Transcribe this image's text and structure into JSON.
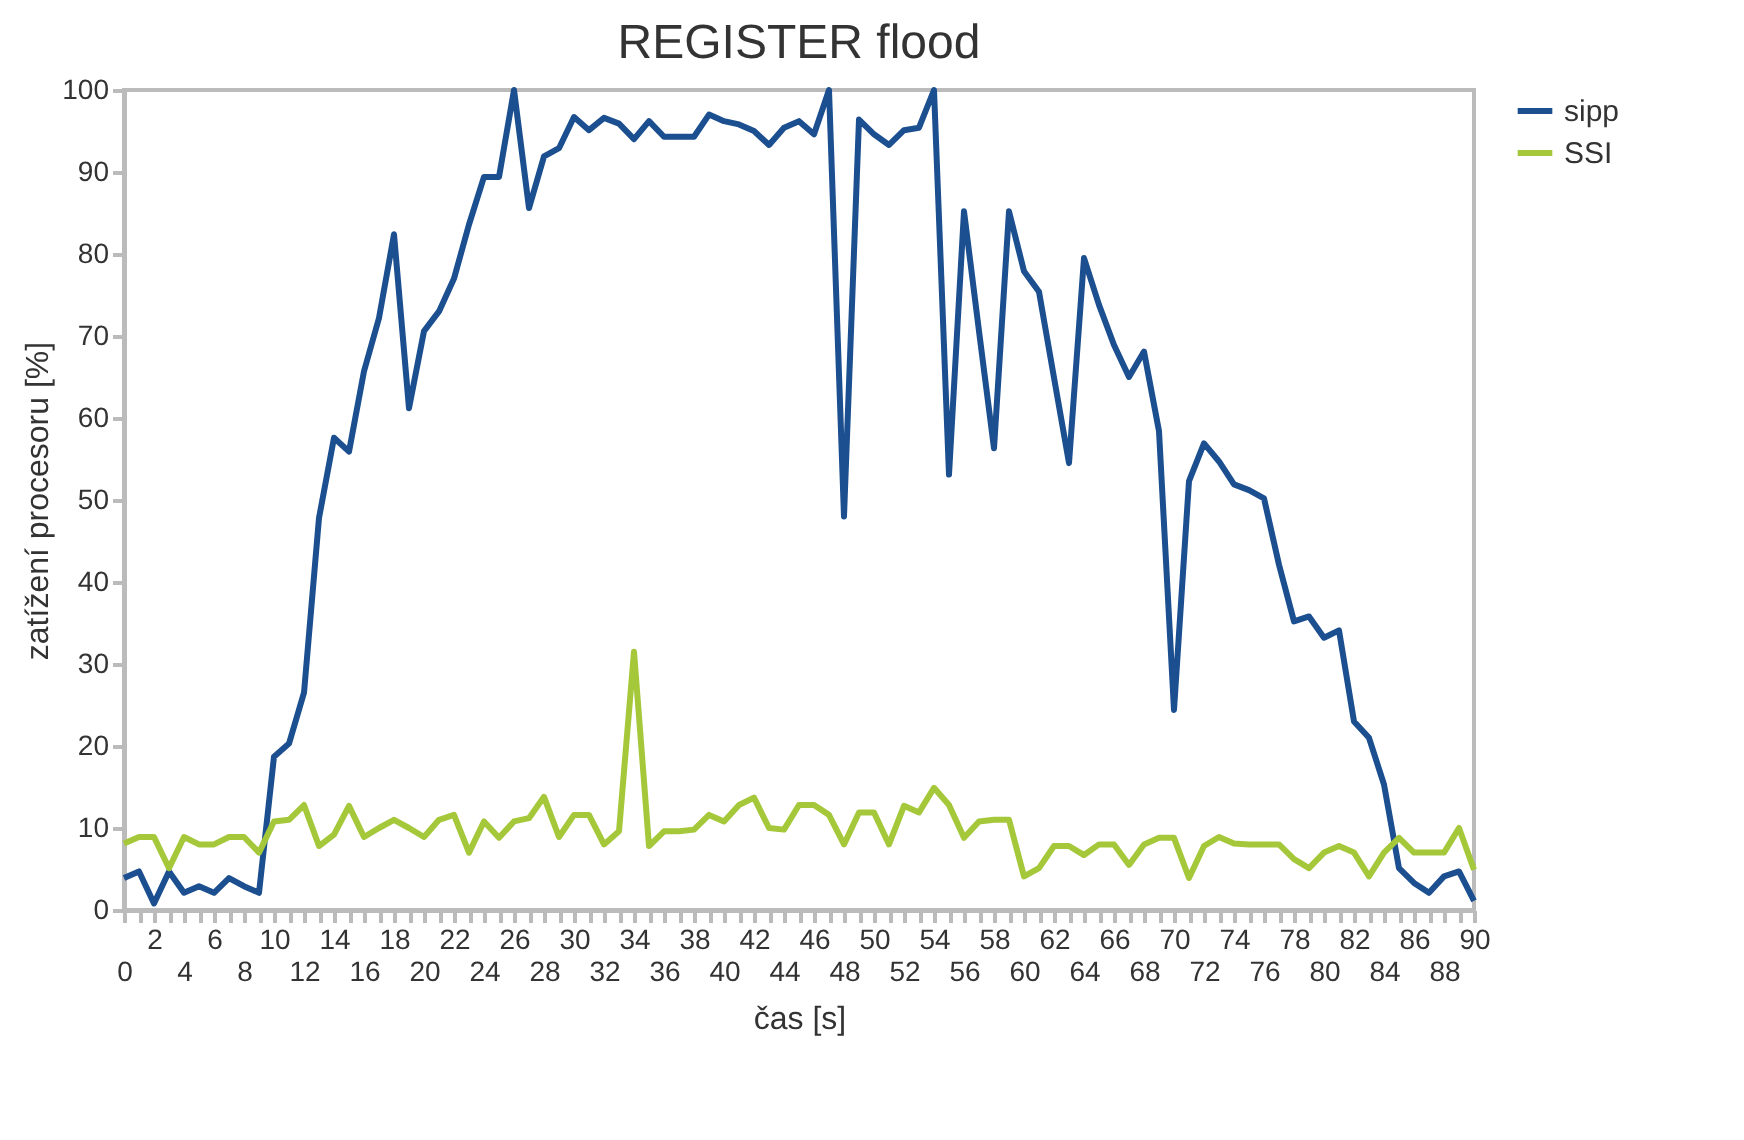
{
  "chart_data": {
    "type": "line",
    "title": "REGISTER flood",
    "xlabel": "čas [s]",
    "ylabel": "zatížení procesoru [%]",
    "categories": [
      "0",
      null,
      "2",
      null,
      "4",
      null,
      "6",
      null,
      "8",
      null,
      "10",
      null,
      "12",
      null,
      "14",
      null,
      "16",
      null,
      "18",
      null,
      "20",
      null,
      "22",
      null,
      "24",
      null,
      "26",
      null,
      "28",
      null,
      "30",
      null,
      "32",
      null,
      "34",
      null,
      "36",
      null,
      "38",
      null,
      "40",
      null,
      "42",
      null,
      "44",
      null,
      "46",
      null,
      "48",
      null,
      "50",
      null,
      "52",
      null,
      "54",
      null,
      "56",
      null,
      "58",
      null,
      "60",
      null,
      "62",
      null,
      "64",
      null,
      "66",
      null,
      "68",
      null,
      "70",
      null,
      "72",
      null,
      "74",
      null,
      "76",
      null,
      "78",
      null,
      "80",
      null,
      "82",
      null,
      "84",
      null,
      "86",
      null,
      "88",
      null,
      "90"
    ],
    "series": [
      {
        "name": "sipp",
        "color": "#1c4f8f",
        "values": [
          3.9,
          4.7,
          0.8,
          4.7,
          2.1,
          2.9,
          2.1,
          3.9,
          2.9,
          2.1,
          18.7,
          20.3,
          26.5,
          47.8,
          57.6,
          55.9,
          65.7,
          72.2,
          82.4,
          61.2,
          70.6,
          73,
          77,
          83.6,
          89.4,
          89.4,
          100,
          85.6,
          91.9,
          92.9,
          96.7,
          95.1,
          96.6,
          95.9,
          94,
          96.2,
          94.3,
          94.3,
          94.3,
          97,
          96.2,
          95.8,
          95,
          93.3,
          95.4,
          96.2,
          94.6,
          100,
          48,
          96.4,
          94.6,
          93.3,
          95.1,
          95.4,
          100,
          53.1,
          85.2,
          70.6,
          56.3,
          85.2,
          77.9,
          75.4,
          64.9,
          54.5,
          79.5,
          73.8,
          68.9,
          65,
          68.1,
          58.4,
          24.4,
          52.3,
          56.9,
          54.7,
          51.9,
          51.2,
          50.2,
          42.1,
          35.2,
          35.8,
          33.2,
          34.1,
          23,
          21,
          15.3,
          5.1,
          3.3,
          2.1,
          4.1,
          4.7,
          1.1
        ]
      },
      {
        "name": "SSI",
        "color": "#a5c83a",
        "values": [
          8.1,
          8.9,
          8.9,
          5.1,
          8.9,
          8,
          8,
          8.9,
          8.9,
          7,
          10.8,
          11,
          12.8,
          7.8,
          9.2,
          12.7,
          8.9,
          10,
          11,
          10,
          8.9,
          11,
          11.6,
          7,
          10.8,
          8.8,
          10.8,
          11.2,
          13.8,
          8.9,
          11.6,
          11.6,
          8,
          9.6,
          31.5,
          7.8,
          9.6,
          9.6,
          9.8,
          11.6,
          10.8,
          12.8,
          13.7,
          10,
          9.8,
          12.8,
          12.8,
          11.6,
          8,
          11.9,
          11.9,
          8,
          12.7,
          11.9,
          14.9,
          12.8,
          8.8,
          10.8,
          11,
          11,
          4.1,
          5.1,
          7.8,
          7.8,
          6.7,
          8,
          8,
          5.5,
          8,
          8.8,
          8.8,
          3.9,
          7.8,
          8.9,
          8.1,
          8,
          8,
          8,
          6.2,
          5.1,
          7,
          7.8,
          7,
          4.1,
          7,
          8.8,
          7,
          7,
          7,
          10,
          4.9
        ]
      }
    ],
    "ylim": [
      0,
      100
    ],
    "yticks": [
      0,
      10,
      20,
      30,
      40,
      50,
      60,
      70,
      80,
      90,
      100
    ],
    "grid": false,
    "legend": "right",
    "marker": "none",
    "line_style": "solid"
  }
}
